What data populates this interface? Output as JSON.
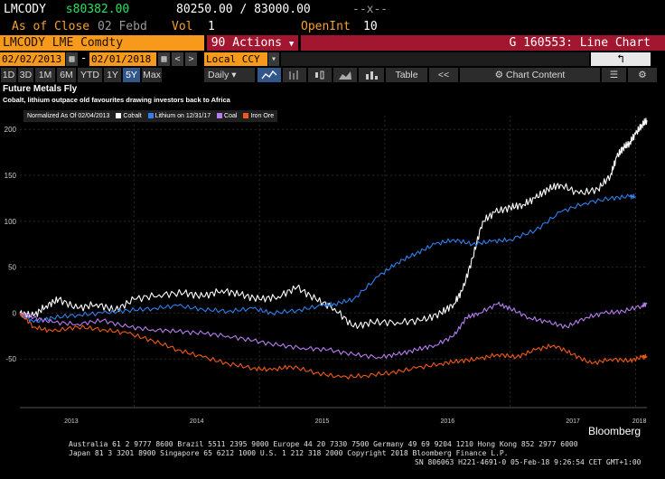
{
  "header": {
    "ticker": "LMCODY",
    "price_prefix": "s",
    "price": "80382.00",
    "bid": "80250.00",
    "ask": "83000.00",
    "change": "--x--",
    "as_of_label": "As of Close",
    "as_of_date": "02 Febd",
    "vol_label": "Vol",
    "vol_value": "1",
    "oi_label": "OpenInt",
    "oi_value": "10"
  },
  "command": {
    "security": "LMCODY LME Comdty",
    "actions_num": "90",
    "actions_label": "Actions",
    "page_title": "G 160553: Line Chart"
  },
  "range": {
    "start_date": "02/02/2013",
    "separator": "-",
    "end_date": "02/01/2018",
    "currency": "Local CCY"
  },
  "toolbar": {
    "periods": [
      "1D",
      "3D",
      "1M",
      "6M",
      "YTD",
      "1Y",
      "5Y",
      "Max"
    ],
    "active_period": "5Y",
    "frequency": "Daily",
    "table_label": "Table",
    "chart_content_label": "Chart Content"
  },
  "chart_titles": {
    "title": "Future Metals Fly",
    "subtitle": "Cobalt, lithium outpace old favourites drawing investors back to Africa"
  },
  "legend": {
    "prefix": "Normalized As Of 02/04/2013",
    "items": [
      {
        "label": "Cobalt",
        "color": "#ffffff"
      },
      {
        "label": "Lithium on 12/31/17",
        "color": "#2f80ed"
      },
      {
        "label": "Coal",
        "color": "#b57df0"
      },
      {
        "label": "Iron Ore",
        "color": "#f05a14"
      }
    ]
  },
  "chart_data": {
    "type": "line",
    "title": "Future Metals Fly",
    "subtitle": "Cobalt, lithium outpace old favourites drawing investors back to Africa",
    "x_ticks": [
      "2013",
      "2014",
      "2015",
      "2016",
      "2017",
      "2018"
    ],
    "y_ticks": [
      "200",
      "150",
      "100",
      "50",
      "0",
      "-50"
    ],
    "ylim": [
      -100,
      215
    ],
    "xlim": [
      2013.09,
      2018.09
    ],
    "grid": true,
    "legend_position": "top-left",
    "series": [
      {
        "name": "Cobalt",
        "color": "#ffffff",
        "x": [
          2013.09,
          2013.2,
          2013.3,
          2013.4,
          2013.55,
          2013.7,
          2013.85,
          2014.0,
          2014.2,
          2014.4,
          2014.55,
          2014.7,
          2014.85,
          2015.0,
          2015.15,
          2015.3,
          2015.45,
          2015.6,
          2015.75,
          2015.9,
          2016.1,
          2016.3,
          2016.45,
          2016.55,
          2016.62,
          2016.7,
          2016.78,
          2016.88,
          2017.0,
          2017.1,
          2017.2,
          2017.3,
          2017.4,
          2017.55,
          2017.7,
          2017.8,
          2017.85,
          2017.9,
          2017.95,
          2018.0,
          2018.05,
          2018.09
        ],
        "y": [
          0,
          -3,
          8,
          15,
          5,
          10,
          3,
          15,
          20,
          22,
          18,
          25,
          20,
          15,
          18,
          28,
          15,
          5,
          -15,
          -10,
          -10,
          -8,
          0,
          10,
          25,
          60,
          100,
          110,
          115,
          118,
          125,
          135,
          140,
          130,
          135,
          150,
          170,
          180,
          185,
          195,
          205,
          210
        ]
      },
      {
        "name": "Lithium on 12/31/17",
        "color": "#2f80ed",
        "x": [
          2013.09,
          2013.2,
          2013.35,
          2013.55,
          2013.75,
          2013.95,
          2014.15,
          2014.35,
          2014.55,
          2014.75,
          2014.95,
          2015.1,
          2015.3,
          2015.5,
          2015.6,
          2015.75,
          2015.95,
          2016.1,
          2016.25,
          2016.4,
          2016.55,
          2016.7,
          2016.85,
          2017.0,
          2017.2,
          2017.4,
          2017.6,
          2017.8,
          2017.95,
          2018.0
        ],
        "y": [
          0,
          -10,
          -5,
          -2,
          0,
          3,
          5,
          8,
          4,
          2,
          5,
          0,
          3,
          8,
          10,
          15,
          40,
          55,
          65,
          75,
          80,
          75,
          78,
          80,
          90,
          110,
          120,
          125,
          127,
          127
        ]
      },
      {
        "name": "Coal",
        "color": "#b57df0",
        "x": [
          2013.09,
          2013.2,
          2013.35,
          2013.55,
          2013.75,
          2013.95,
          2014.15,
          2014.35,
          2014.55,
          2014.75,
          2014.95,
          2015.15,
          2015.35,
          2015.55,
          2015.75,
          2015.95,
          2016.1,
          2016.25,
          2016.4,
          2016.55,
          2016.65,
          2016.75,
          2016.9,
          2017.0,
          2017.15,
          2017.3,
          2017.45,
          2017.6,
          2017.75,
          2017.9,
          2018.05,
          2018.09
        ],
        "y": [
          0,
          -5,
          -10,
          -12,
          -8,
          -15,
          -18,
          -20,
          -22,
          -25,
          -30,
          -35,
          -38,
          -40,
          -45,
          -48,
          -45,
          -40,
          -35,
          -25,
          -5,
          0,
          10,
          5,
          -5,
          -10,
          -15,
          -5,
          0,
          2,
          8,
          10
        ]
      },
      {
        "name": "Iron Ore",
        "color": "#f05a14",
        "x": [
          2013.09,
          2013.2,
          2013.35,
          2013.55,
          2013.75,
          2013.95,
          2014.15,
          2014.35,
          2014.55,
          2014.75,
          2014.95,
          2015.1,
          2015.25,
          2015.45,
          2015.65,
          2015.85,
          2016.05,
          2016.25,
          2016.45,
          2016.6,
          2016.75,
          2016.9,
          2017.05,
          2017.2,
          2017.35,
          2017.5,
          2017.65,
          2017.8,
          2017.95,
          2018.05,
          2018.09
        ],
        "y": [
          0,
          -15,
          -20,
          -15,
          -18,
          -22,
          -30,
          -40,
          -48,
          -55,
          -60,
          -62,
          -58,
          -65,
          -70,
          -68,
          -65,
          -60,
          -55,
          -52,
          -50,
          -45,
          -48,
          -40,
          -35,
          -45,
          -55,
          -50,
          -52,
          -48,
          -47
        ]
      }
    ]
  },
  "footer": {
    "line1": "Australia 61 2 9777 8600 Brazil 5511 2395 9000 Europe 44 20 7330 7500 Germany 49 69 9204 1210 Hong Kong 852 2977 6000",
    "line2": "Japan 81 3 3201 8900        Singapore 65 6212 1000        U.S. 1 212 318 2000        Copyright 2018 Bloomberg Finance L.P.",
    "line3": "SN 806063 H221-4691-0 05-Feb-18  9:26:54 CET  GMT+1:00",
    "brand": "Bloomberg"
  },
  "colors": {
    "accent_orange": "#f79a1c",
    "title_bar_red": "#a3162f",
    "price_green": "#29e35f",
    "active_blue": "#31578a"
  }
}
